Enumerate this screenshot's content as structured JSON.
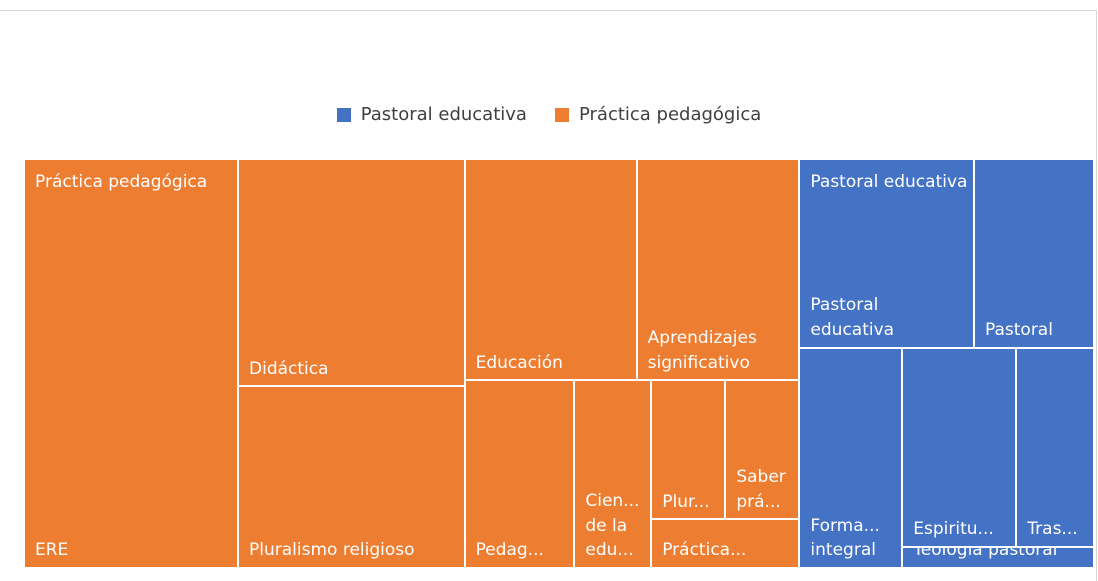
{
  "chart_data": {
    "type": "treemap",
    "series": [
      {
        "name": "Pastoral educativa",
        "color": "#4472c4",
        "categories": [
          "Pastoral educativa",
          "Pastoral",
          "Forma... integral",
          "Espiritu...",
          "Tras...",
          "Teología pastoral"
        ],
        "values": [
          32,
          22,
          22,
          22,
          15,
          4
        ]
      },
      {
        "name": "Práctica pedagógica",
        "color": "#ed7d31",
        "categories": [
          "ERE",
          "Didáctica",
          "Pluralismo religioso",
          "Educación",
          "Aprendizajes significativo",
          "Pedag...",
          "Cien... de la edu...",
          "Plur...",
          "Saber prá...",
          "Práctica..."
        ],
        "values": [
          85,
          50,
          40,
          37,
          35,
          20,
          14,
          10,
          10,
          7
        ]
      }
    ],
    "legend": "top"
  }
}
